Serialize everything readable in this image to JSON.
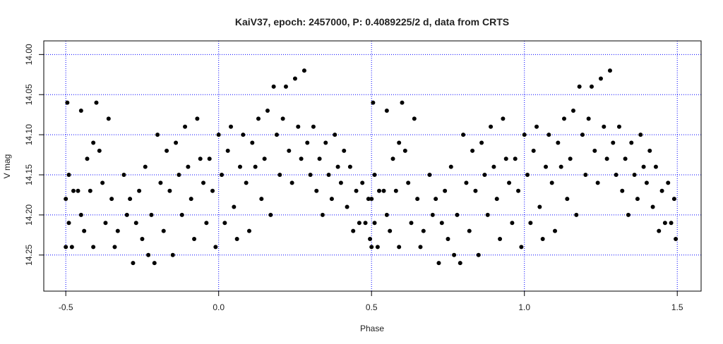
{
  "chart_data": {
    "type": "scatter",
    "title": "KaiV37, epoch: 2457000, P: 0.4089225/2 d, data from CRTS",
    "x_label": "Phase",
    "y_label": "V mag",
    "color": "#000000",
    "grid": true,
    "grid_color": "#0000ff",
    "xlim": [
      -0.572,
      1.578
    ],
    "ylim": [
      14.295,
      13.983
    ],
    "xticks": [
      -0.5,
      {
        "value": 0,
        "label": "0.0"
      },
      0.5,
      {
        "value": 1,
        "label": "1.0"
      },
      1.5
    ],
    "yticks": [
      {
        "value": 14,
        "label": "14.00"
      },
      14.05,
      {
        "value": 14.1,
        "label": "14.10"
      },
      14.15,
      {
        "value": 14.2,
        "label": "14.20"
      },
      14.25
    ],
    "x": [
      -0.5,
      -0.5,
      -0.495,
      -0.49,
      -0.49,
      -0.48,
      -0.475,
      -0.46,
      -0.45,
      -0.45,
      -0.44,
      -0.43,
      -0.42,
      -0.41,
      -0.41,
      -0.4,
      -0.39,
      -0.38,
      -0.37,
      -0.36,
      -0.35,
      -0.34,
      -0.33,
      -0.31,
      -0.3,
      -0.29,
      -0.28,
      -0.27,
      -0.26,
      -0.25,
      -0.24,
      -0.23,
      -0.22,
      -0.21,
      -0.2,
      -0.19,
      -0.18,
      -0.17,
      -0.16,
      -0.15,
      -0.14,
      -0.13,
      -0.12,
      -0.11,
      -0.1,
      -0.09,
      -0.08,
      -0.07,
      -0.06,
      -0.05,
      -0.04,
      -0.03,
      -0.02,
      -0.01,
      0,
      0.01,
      0.02,
      0.03,
      0.04,
      0.05,
      0.06,
      0.07,
      0.08,
      0.09,
      0.1,
      0.11,
      0.12,
      0.13,
      0.14,
      0.15,
      0.16,
      0.17,
      0.18,
      0.19,
      0.2,
      0.21,
      0.22,
      0.23,
      0.24,
      0.25,
      0.26,
      0.27,
      0.28,
      0.29,
      0.3,
      0.31,
      0.32,
      0.33,
      0.34,
      0.35,
      0.36,
      0.37,
      0.38,
      0.39,
      0.4,
      0.41,
      0.42,
      0.43,
      0.44,
      0.45,
      0.46,
      0.47,
      0.48,
      0.49,
      0.495,
      0.5,
      0.5,
      0.505,
      0.51,
      0.51,
      0.52,
      0.525,
      0.54,
      0.55,
      0.55,
      0.56,
      0.57,
      0.58,
      0.59,
      0.59,
      0.6,
      0.61,
      0.62,
      0.63,
      0.64,
      0.65,
      0.66,
      0.67,
      0.69,
      0.7,
      0.71,
      0.72,
      0.73,
      0.74,
      0.75,
      0.76,
      0.77,
      0.78,
      0.79,
      0.8,
      0.81,
      0.82,
      0.83,
      0.84,
      0.85,
      0.86,
      0.87,
      0.88,
      0.89,
      0.9,
      0.91,
      0.92,
      0.93,
      0.94,
      0.95,
      0.96,
      0.97,
      0.98,
      0.99,
      1,
      1.01,
      1.02,
      1.03,
      1.04,
      1.05,
      1.06,
      1.07,
      1.08,
      1.09,
      1.1,
      1.11,
      1.12,
      1.13,
      1.14,
      1.15,
      1.16,
      1.17,
      1.18,
      1.19,
      1.2,
      1.21,
      1.22,
      1.23,
      1.24,
      1.25,
      1.26,
      1.27,
      1.28,
      1.29,
      1.3,
      1.31,
      1.32,
      1.33,
      1.34,
      1.35,
      1.36,
      1.37,
      1.38,
      1.39,
      1.4,
      1.41,
      1.42,
      1.43,
      1.44,
      1.45,
      1.46,
      1.47,
      1.48,
      1.49,
      1.495
    ],
    "values": [
      14.18,
      14.24,
      14.06,
      14.15,
      14.21,
      14.24,
      14.17,
      14.17,
      14.07,
      14.2,
      14.22,
      14.13,
      14.17,
      14.11,
      14.24,
      14.06,
      14.12,
      14.16,
      14.21,
      14.08,
      14.18,
      14.24,
      14.22,
      14.15,
      14.2,
      14.18,
      14.26,
      14.21,
      14.17,
      14.23,
      14.14,
      14.25,
      14.2,
      14.26,
      14.1,
      14.16,
      14.22,
      14.12,
      14.17,
      14.25,
      14.11,
      14.15,
      14.2,
      14.09,
      14.14,
      14.18,
      14.23,
      14.08,
      14.13,
      14.16,
      14.21,
      14.13,
      14.17,
      14.24,
      14.1,
      14.15,
      14.21,
      14.12,
      14.09,
      14.19,
      14.23,
      14.14,
      14.1,
      14.16,
      14.22,
      14.11,
      14.14,
      14.08,
      14.18,
      14.13,
      14.07,
      14.2,
      14.04,
      14.1,
      14.15,
      14.08,
      14.04,
      14.12,
      14.16,
      14.03,
      14.09,
      14.13,
      14.02,
      14.11,
      14.15,
      14.09,
      14.17,
      14.13,
      14.2,
      14.11,
      14.15,
      14.18,
      14.1,
      14.14,
      14.16,
      14.12,
      14.19,
      14.14,
      14.22,
      14.17,
      14.21,
      14.16,
      14.21,
      14.18,
      14.23,
      14.18,
      14.24,
      14.06,
      14.15,
      14.21,
      14.24,
      14.17,
      14.17,
      14.07,
      14.2,
      14.22,
      14.13,
      14.17,
      14.11,
      14.24,
      14.06,
      14.12,
      14.16,
      14.21,
      14.08,
      14.18,
      14.24,
      14.22,
      14.15,
      14.2,
      14.18,
      14.26,
      14.21,
      14.17,
      14.23,
      14.14,
      14.25,
      14.2,
      14.26,
      14.1,
      14.16,
      14.22,
      14.12,
      14.17,
      14.25,
      14.11,
      14.15,
      14.2,
      14.09,
      14.14,
      14.18,
      14.23,
      14.08,
      14.13,
      14.16,
      14.21,
      14.13,
      14.17,
      14.24,
      14.1,
      14.15,
      14.21,
      14.12,
      14.09,
      14.19,
      14.23,
      14.14,
      14.1,
      14.16,
      14.22,
      14.11,
      14.14,
      14.08,
      14.18,
      14.13,
      14.07,
      14.2,
      14.04,
      14.1,
      14.15,
      14.08,
      14.04,
      14.12,
      14.16,
      14.03,
      14.09,
      14.13,
      14.02,
      14.11,
      14.15,
      14.09,
      14.17,
      14.13,
      14.2,
      14.11,
      14.15,
      14.18,
      14.1,
      14.14,
      14.16,
      14.12,
      14.19,
      14.14,
      14.22,
      14.17,
      14.21,
      14.16,
      14.21,
      14.18,
      14.23
    ]
  }
}
